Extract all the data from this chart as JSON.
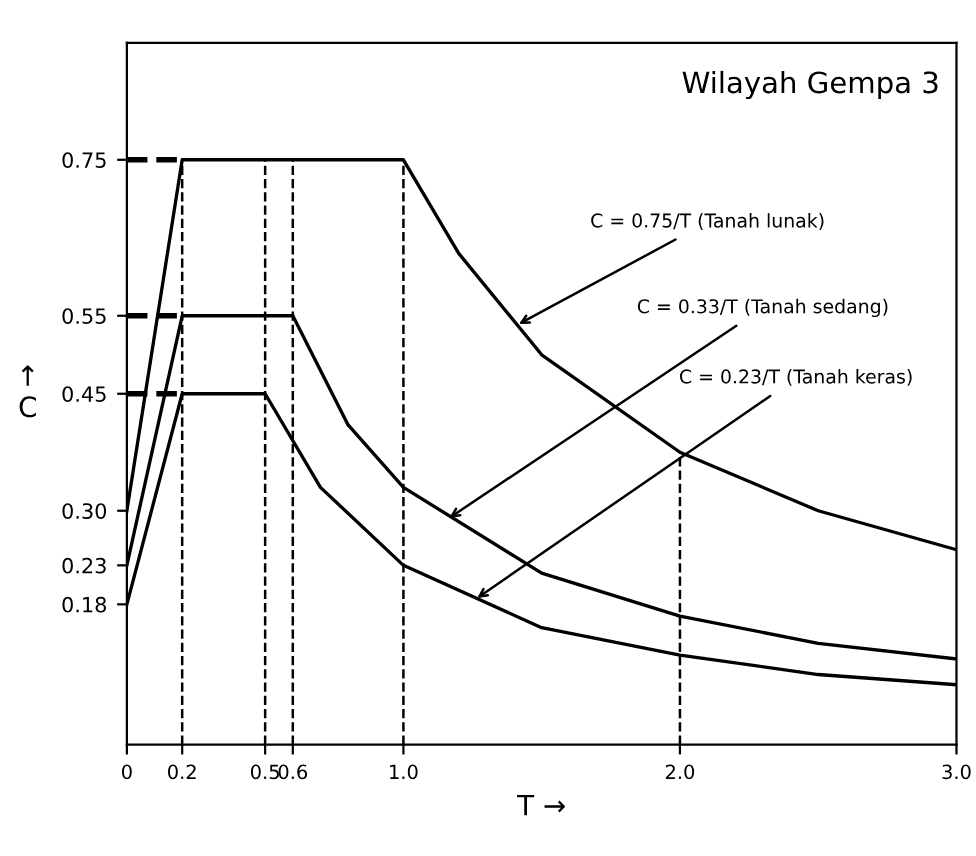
{
  "chart_data": {
    "type": "line",
    "title": "Wilayah Gempa 3",
    "xlabel": "T →",
    "ylabel": "↑\nC",
    "series": [
      {
        "color": "#000000",
        "x": [
          0,
          0.2,
          1.0,
          1.2,
          1.5,
          2.0,
          2.5,
          3.0
        ],
        "values": [
          0.3,
          0.75,
          0.75,
          0.63,
          0.5,
          0.375,
          0.3,
          0.25
        ]
      },
      {
        "color": "#000000",
        "x": [
          0,
          0.2,
          0.6,
          0.8,
          1.0,
          1.5,
          2.0,
          2.5,
          3.0
        ],
        "values": [
          0.23,
          0.55,
          0.55,
          0.41,
          0.33,
          0.22,
          0.165,
          0.13,
          0.11
        ]
      },
      {
        "color": "#000000",
        "x": [
          0,
          0.2,
          0.5,
          0.7,
          1.0,
          1.5,
          2.0,
          2.5,
          3.0
        ],
        "values": [
          0.18,
          0.45,
          0.45,
          0.33,
          0.23,
          0.15,
          0.115,
          0.09,
          0.077
        ]
      },
      {
        "color": "#000000",
        "line_style": "dashed",
        "x": [
          0,
          0.2
        ],
        "values": [
          0.75,
          0.75
        ]
      },
      {
        "color": "#000000",
        "line_style": "dashed",
        "x": [
          0,
          0.2
        ],
        "values": [
          0.55,
          0.55
        ]
      },
      {
        "color": "#000000",
        "line_style": "dashed",
        "x": [
          0,
          0.2
        ],
        "values": [
          0.45,
          0.45
        ]
      }
    ],
    "annotations": [
      {
        "text": "C = 0.75/T (Tanah lunak)",
        "x": 1.4,
        "y": 0.536
      },
      {
        "text": "C = 0.33/T (Tanah sedang)",
        "x": 1.15,
        "y": 0.287
      },
      {
        "text": "C = 0.23/T (Tanah keras)",
        "x": 1.25,
        "y": 0.184
      }
    ],
    "ref_lines": [
      {
        "axis": "x",
        "value": 0.2,
        "line_style": "dashed"
      },
      {
        "axis": "x",
        "value": 0.5,
        "line_style": "dashed"
      },
      {
        "axis": "x",
        "value": 0.6,
        "line_style": "dashed"
      },
      {
        "axis": "x",
        "value": 1.0,
        "line_style": "dashed"
      },
      {
        "axis": "x",
        "value": 2.0,
        "line_style": "dashed"
      }
    ],
    "xlim": [
      0,
      3.0
    ],
    "ylim": [
      0,
      0.9
    ],
    "xticks": [
      0,
      0.2,
      0.5,
      0.6,
      {
        "value": 1.0,
        "label": "1.0"
      },
      {
        "value": 2.0,
        "label": "2.0"
      },
      {
        "value": 3.0,
        "label": "3.0"
      }
    ],
    "yticks": [
      0.18,
      0.23,
      {
        "value": 0.3,
        "label": "0.30"
      },
      0.45,
      0.55,
      0.75
    ],
    "grid": false,
    "marker": "none",
    "line_style": "solid"
  }
}
